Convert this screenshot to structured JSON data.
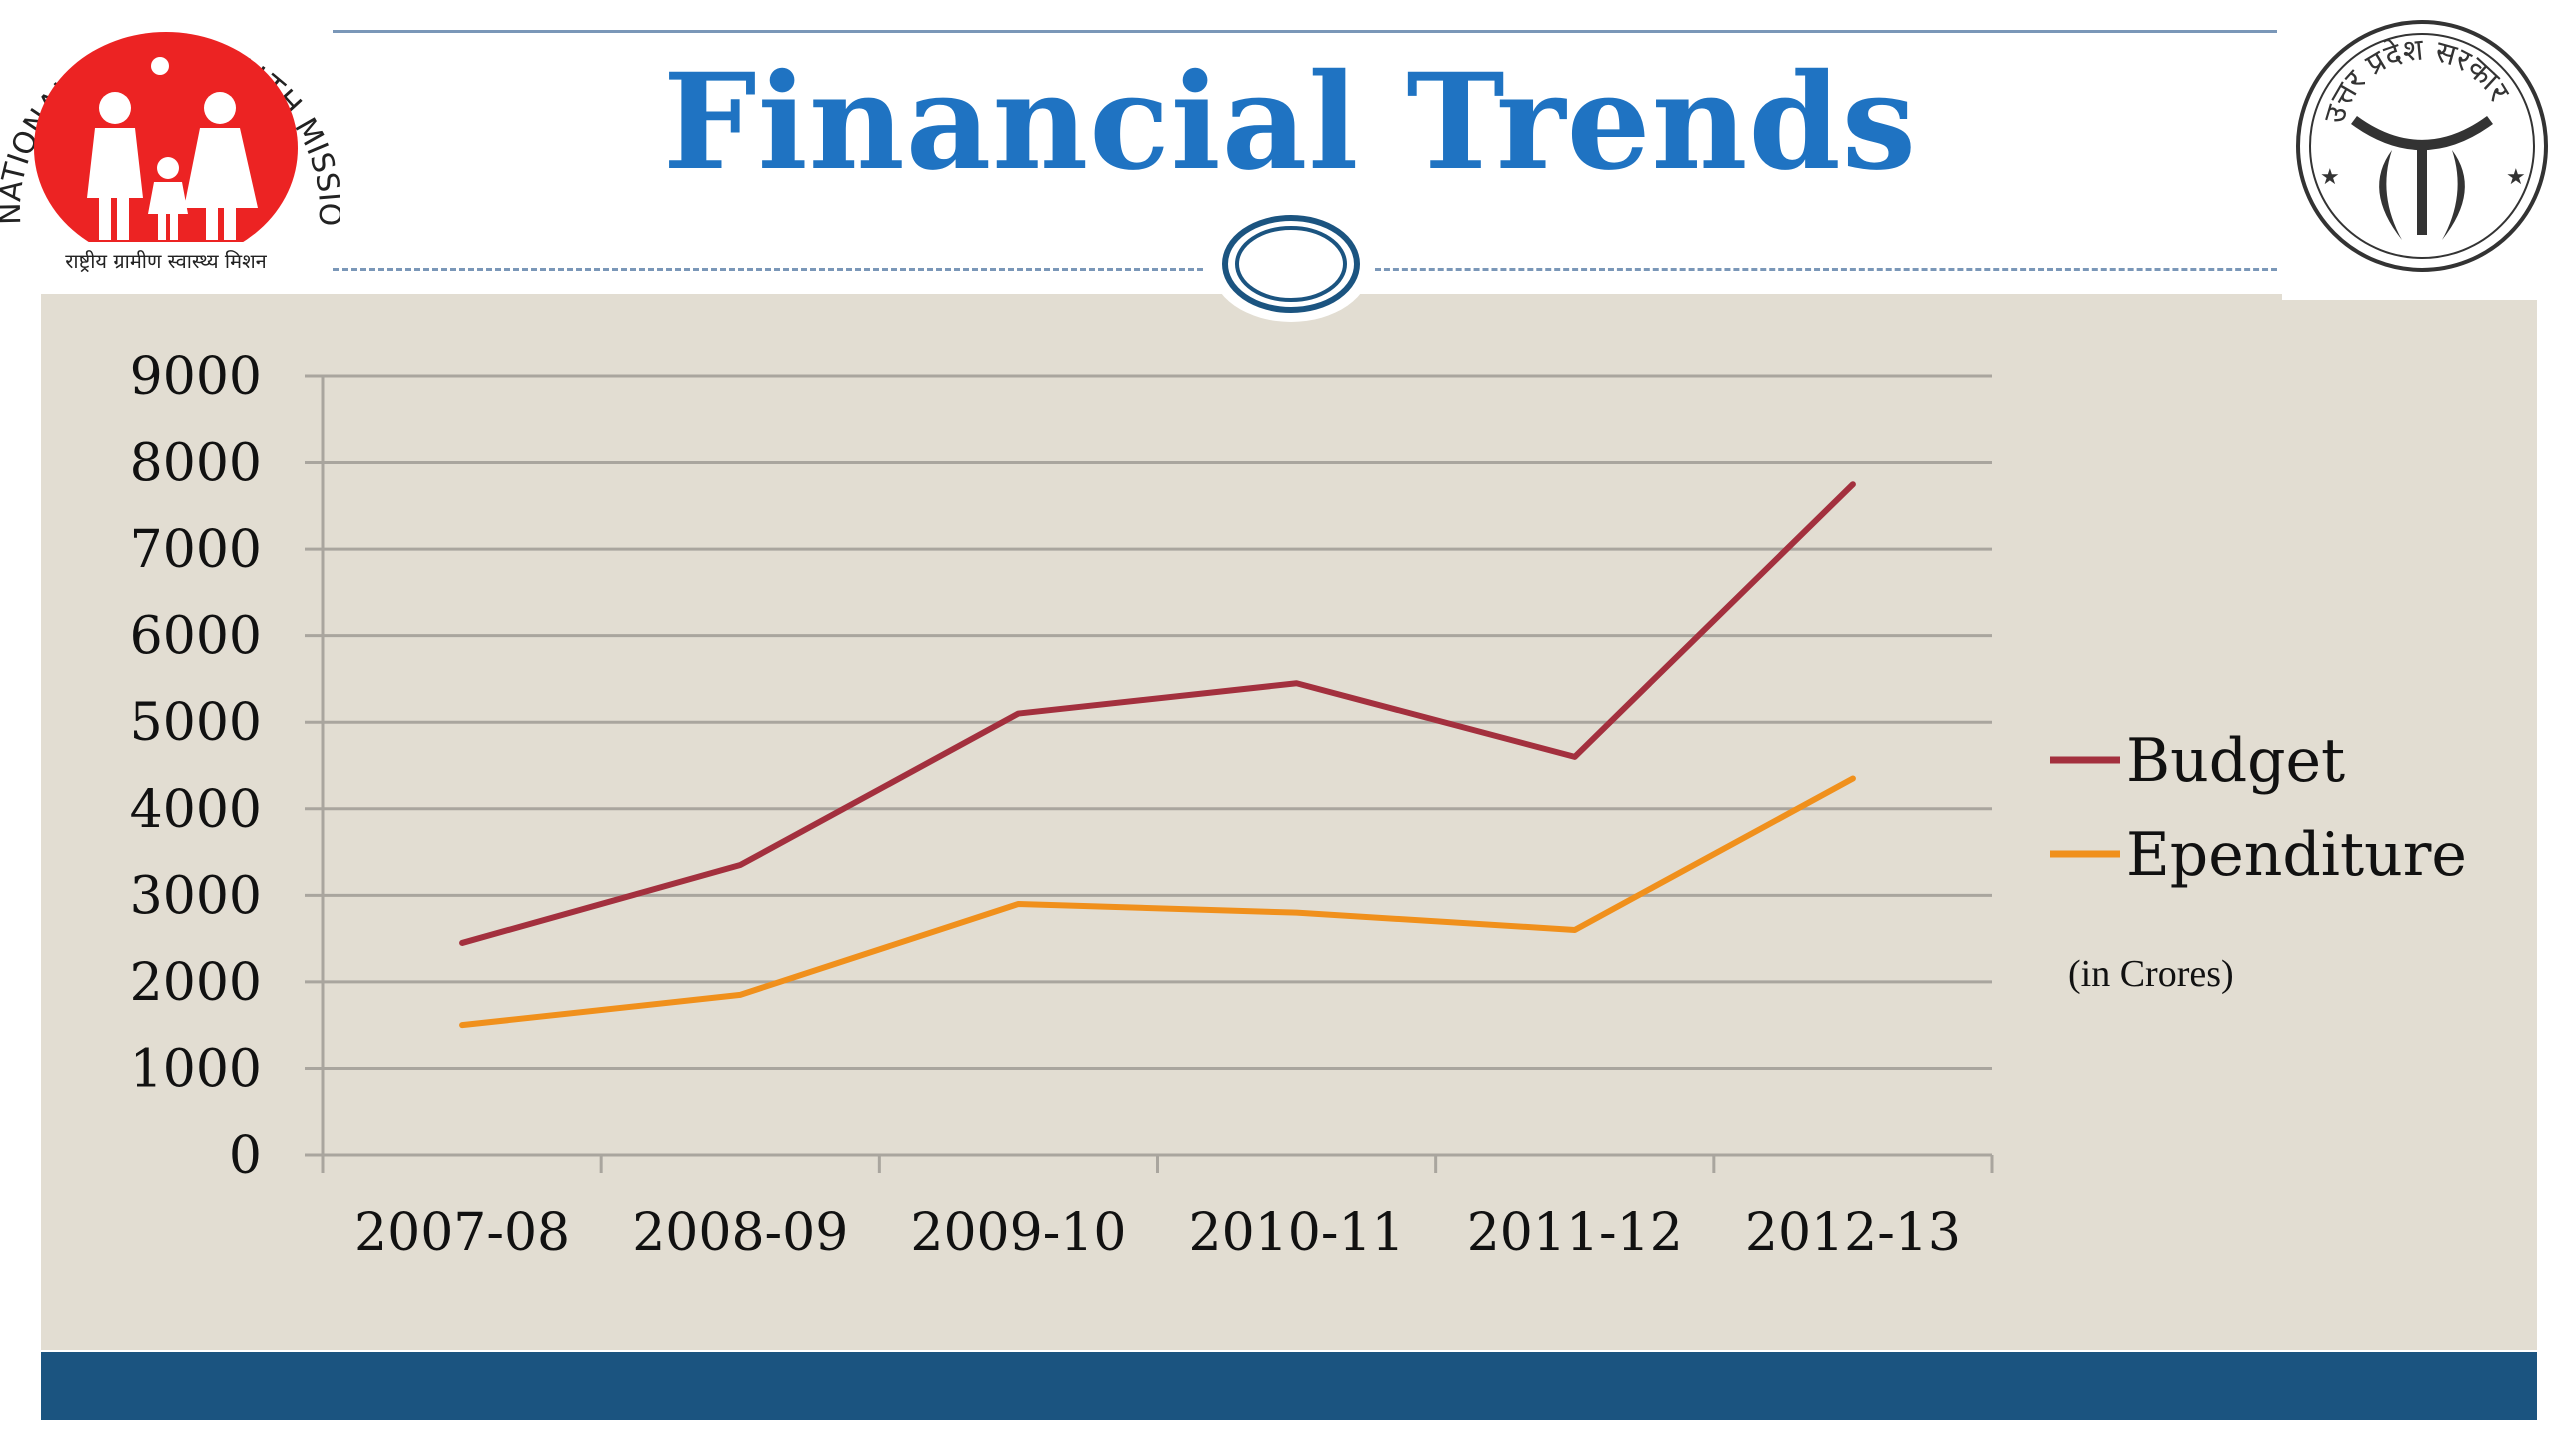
{
  "slide": {
    "title": "Financial Trends",
    "unit_note": "(in Crores)",
    "colors": {
      "title": "#1f73c2",
      "background": "#e2ddd2",
      "footer": "#1b5480",
      "budget": "#a3303e",
      "expenditure": "#f0901c"
    }
  },
  "logo_left": {
    "icon": "nrhm-logo-icon",
    "ring_text": "NATIONAL RURAL HEALTH MISSION",
    "hindi_text": "राष्ट्रीय ग्रामीण स्वास्थ्य मिशन"
  },
  "logo_right": {
    "icon": "uttar-pradesh-emblem-icon",
    "ring_text": "उत्तर प्रदेश सरकार"
  },
  "chart_data": {
    "type": "line",
    "categories": [
      "2007-08",
      "2008-09",
      "2009-10",
      "2010-11",
      "2011-12",
      "2012-13"
    ],
    "series": [
      {
        "name": "Budget",
        "color": "#a3303e",
        "values": [
          2450,
          3350,
          5100,
          5450,
          4600,
          7750
        ]
      },
      {
        "name": "Ependiture",
        "color": "#f0901c",
        "values": [
          1500,
          1850,
          2900,
          2800,
          2600,
          4350
        ]
      }
    ],
    "ylim": [
      0,
      9000
    ],
    "yticks": [
      0,
      1000,
      2000,
      3000,
      4000,
      5000,
      6000,
      7000,
      8000,
      9000
    ],
    "grid": true,
    "legend_position": "right"
  }
}
